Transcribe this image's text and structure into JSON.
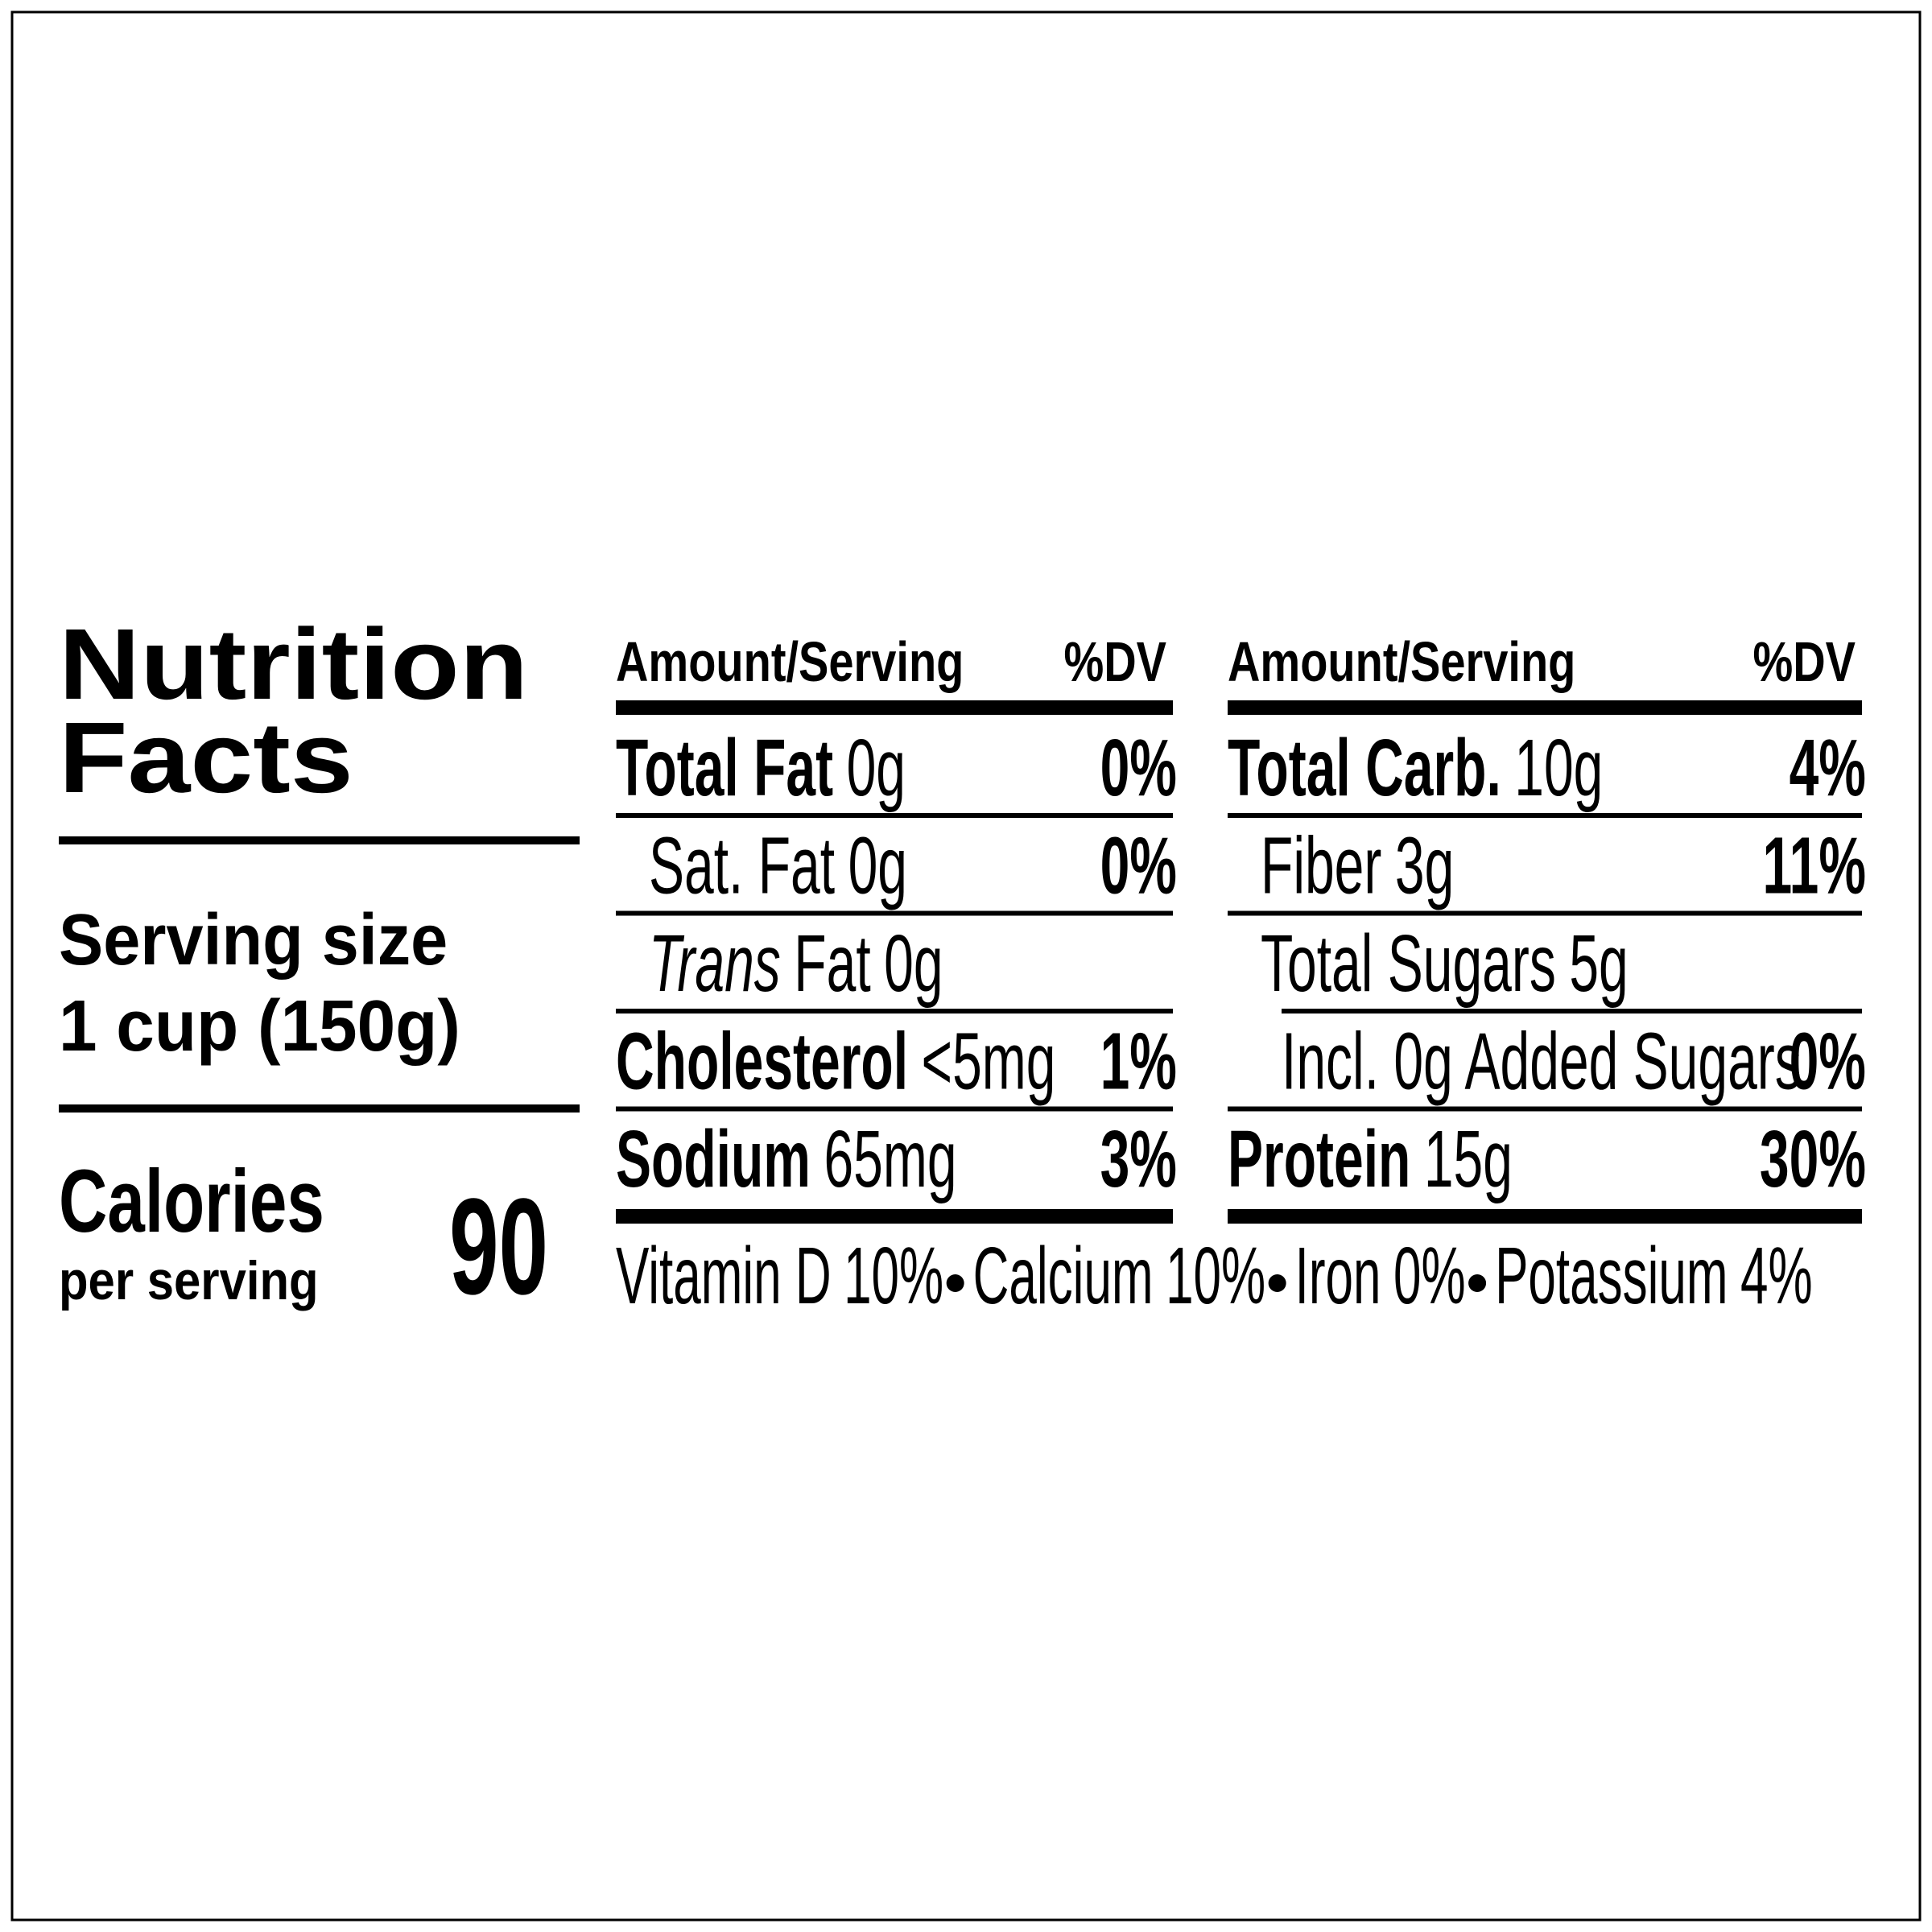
{
  "title": {
    "line1": "Nutrition",
    "line2": "Facts"
  },
  "serving": {
    "label": "Serving size",
    "amount": "1 cup (150g)"
  },
  "calories": {
    "label": "Calories",
    "sublabel": "per serving",
    "value": 90
  },
  "columns": [
    {
      "header": {
        "amount": "Amount/Serving",
        "dv": "%DV"
      },
      "rows": [
        {
          "name": "Total Fat",
          "amount": "0g",
          "dv": "0%",
          "level": 0
        },
        {
          "name": "Sat. Fat",
          "amount": "0g",
          "dv": "0%",
          "level": 1
        },
        {
          "name_prefix": "Trans",
          "name": "Fat",
          "amount": "0g",
          "level": 1
        },
        {
          "name": "Cholesterol",
          "amount": "<5mg",
          "dv": "1%",
          "level": 0
        },
        {
          "name": "Sodium",
          "amount": "65mg",
          "dv": "3%",
          "level": 0
        }
      ]
    },
    {
      "header": {
        "amount": "Amount/Serving",
        "dv": "%DV"
      },
      "rows": [
        {
          "name": "Total Carb.",
          "amount": "10g",
          "dv": "4%",
          "level": 0
        },
        {
          "name": "Fiber",
          "amount": "3g",
          "dv": "11%",
          "level": 1
        },
        {
          "name": "Total Sugars",
          "amount": "5g",
          "level": 1
        },
        {
          "name": "Incl. 0g Added Sugars",
          "dv": "0%",
          "level": 2
        },
        {
          "name": "Protein",
          "amount": "15g",
          "dv": "30%",
          "level": 0
        }
      ]
    }
  ],
  "vitamins": [
    {
      "name": "Vitamin D",
      "dv": "10%"
    },
    {
      "name": "Calcium",
      "dv": "10%"
    },
    {
      "name": "Iron",
      "dv": "0%"
    },
    {
      "name": "Potassium",
      "dv": "4%"
    }
  ]
}
